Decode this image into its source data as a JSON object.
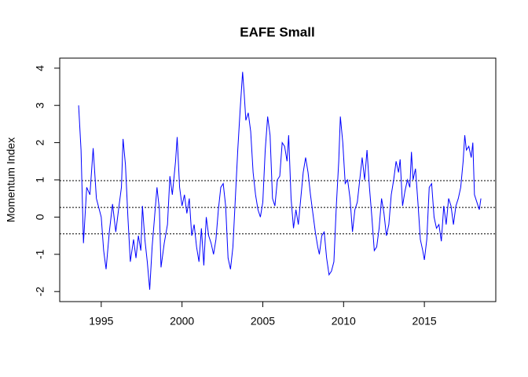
{
  "chart_data": {
    "type": "line",
    "title": "EAFE Small",
    "y_label": "Momentum Index",
    "x": [
      1993.6,
      1993.75,
      1993.9,
      1994.1,
      1994.3,
      1994.5,
      1994.7,
      1995.0,
      1995.15,
      1995.3,
      1995.5,
      1995.7,
      1995.9,
      1996.1,
      1996.25,
      1996.35,
      1996.5,
      1996.65,
      1996.8,
      1997.0,
      1997.15,
      1997.3,
      1997.45,
      1997.55,
      1997.7,
      1997.85,
      1998.0,
      1998.15,
      1998.3,
      1998.45,
      1998.6,
      1998.7,
      1998.9,
      1999.1,
      1999.25,
      1999.4,
      1999.6,
      1999.7,
      1999.85,
      2000.0,
      2000.15,
      2000.3,
      2000.45,
      2000.6,
      2000.75,
      2000.9,
      2001.05,
      2001.2,
      2001.35,
      2001.5,
      2001.65,
      2001.8,
      2001.95,
      2002.1,
      2002.25,
      2002.4,
      2002.55,
      2002.7,
      2002.85,
      2003.0,
      2003.15,
      2003.3,
      2003.45,
      2003.6,
      2003.75,
      2003.85,
      2003.95,
      2004.1,
      2004.25,
      2004.4,
      2004.55,
      2004.7,
      2004.85,
      2005.0,
      2005.15,
      2005.3,
      2005.45,
      2005.6,
      2005.75,
      2005.9,
      2006.05,
      2006.2,
      2006.35,
      2006.5,
      2006.6,
      2006.75,
      2006.9,
      2007.05,
      2007.2,
      2007.35,
      2007.5,
      2007.65,
      2007.8,
      2007.95,
      2008.1,
      2008.25,
      2008.4,
      2008.5,
      2008.65,
      2008.8,
      2008.95,
      2009.1,
      2009.25,
      2009.4,
      2009.55,
      2009.7,
      2009.8,
      2009.95,
      2010.1,
      2010.25,
      2010.4,
      2010.55,
      2010.7,
      2010.85,
      2011.0,
      2011.15,
      2011.3,
      2011.45,
      2011.6,
      2011.75,
      2011.9,
      2012.05,
      2012.2,
      2012.35,
      2012.5,
      2012.65,
      2012.8,
      2012.95,
      2013.1,
      2013.25,
      2013.4,
      2013.5,
      2013.65,
      2013.8,
      2013.95,
      2014.1,
      2014.2,
      2014.3,
      2014.45,
      2014.6,
      2014.75,
      2014.9,
      2015.0,
      2015.15,
      2015.3,
      2015.45,
      2015.6,
      2015.75,
      2015.9,
      2016.05,
      2016.2,
      2016.35,
      2016.5,
      2016.65,
      2016.8,
      2016.95,
      2017.1,
      2017.25,
      2017.4,
      2017.5,
      2017.6,
      2017.75,
      2017.9,
      2018.0,
      2018.1,
      2018.25,
      2018.4,
      2018.5
    ],
    "values": [
      3.0,
      1.8,
      -0.7,
      0.8,
      0.6,
      1.85,
      0.5,
      0.0,
      -0.9,
      -1.4,
      -0.4,
      0.35,
      -0.4,
      0.3,
      0.8,
      2.1,
      1.4,
      0.0,
      -1.2,
      -0.6,
      -1.1,
      -0.5,
      -0.9,
      0.3,
      -0.6,
      -1.2,
      -1.95,
      -0.8,
      0.0,
      0.8,
      0.2,
      -1.35,
      -0.7,
      -0.2,
      1.1,
      0.6,
      1.5,
      2.15,
      0.8,
      0.3,
      0.6,
      0.1,
      0.5,
      -0.5,
      -0.2,
      -0.8,
      -1.2,
      -0.3,
      -1.3,
      0.0,
      -0.5,
      -0.7,
      -1.0,
      -0.6,
      0.2,
      0.8,
      0.9,
      0.3,
      -1.1,
      -1.4,
      -0.8,
      0.5,
      1.8,
      2.9,
      3.9,
      3.3,
      2.6,
      2.8,
      2.3,
      1.2,
      0.6,
      0.2,
      0.0,
      0.4,
      1.8,
      2.7,
      2.2,
      0.5,
      0.3,
      1.0,
      1.1,
      2.0,
      1.9,
      1.5,
      2.2,
      0.5,
      -0.3,
      0.2,
      -0.2,
      0.5,
      1.2,
      1.6,
      1.2,
      0.6,
      0.1,
      -0.4,
      -0.8,
      -1.0,
      -0.5,
      -0.4,
      -1.1,
      -1.55,
      -1.45,
      -1.2,
      0.3,
      1.5,
      2.7,
      2.0,
      0.9,
      1.0,
      0.5,
      -0.4,
      0.2,
      0.4,
      1.0,
      1.6,
      1.0,
      1.8,
      0.8,
      0.0,
      -0.9,
      -0.8,
      -0.3,
      0.5,
      0.1,
      -0.5,
      -0.2,
      0.6,
      1.0,
      1.5,
      1.2,
      1.55,
      0.3,
      0.7,
      1.0,
      0.8,
      1.75,
      1.0,
      1.3,
      0.4,
      -0.6,
      -0.9,
      -1.15,
      -0.6,
      0.8,
      0.9,
      0.0,
      -0.3,
      -0.2,
      -0.65,
      0.3,
      -0.2,
      0.5,
      0.3,
      -0.2,
      0.3,
      0.5,
      0.8,
      1.5,
      2.2,
      1.8,
      1.9,
      1.6,
      2.0,
      0.6,
      0.4,
      0.2,
      0.5
    ],
    "color": "#0000ff",
    "hlines": [
      0.98,
      0.26,
      -0.45
    ],
    "xlim": [
      1992.43,
      2019.42
    ],
    "xticks": [
      1995,
      2000,
      2005,
      2010,
      2015
    ],
    "ylim": [
      -2.27,
      4.27
    ],
    "yticks": [
      -2,
      -1,
      0,
      1,
      2,
      3,
      4
    ]
  }
}
